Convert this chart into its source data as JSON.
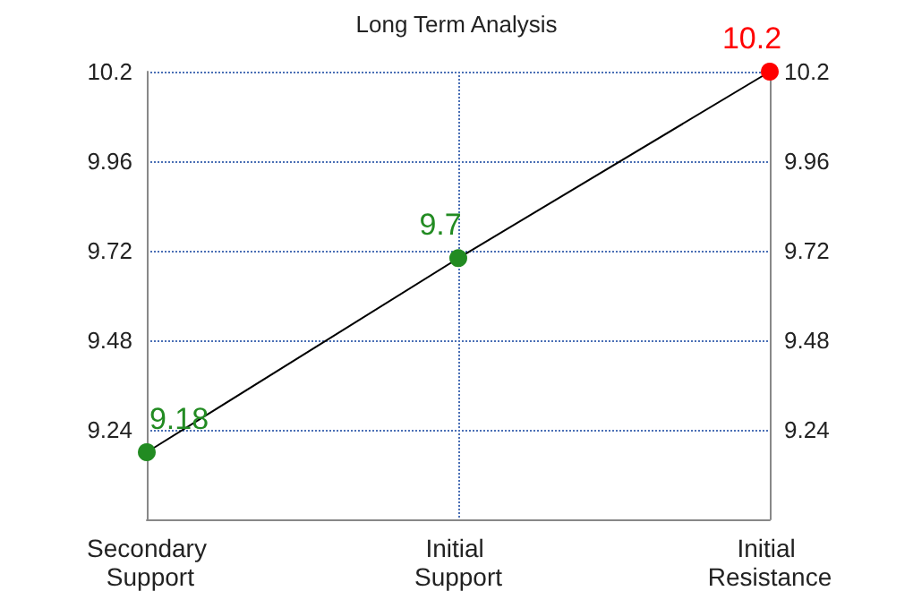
{
  "chart_data": {
    "type": "line",
    "title": "Long Term Analysis",
    "categories": [
      "Secondary Support",
      "Initial Support",
      "Initial Resistance"
    ],
    "series": [
      {
        "color": "#000000",
        "colors": [
          "#228b22",
          "#228b22",
          "#ff0000"
        ],
        "values": [
          9.18,
          9.7,
          10.2
        ]
      }
    ],
    "ylim": [
      9.0,
      10.2
    ],
    "yticks": [
      9.24,
      9.48,
      9.72,
      9.96,
      10.2
    ],
    "y2lim": [
      9.0,
      10.2
    ],
    "y2ticks": [
      9.24,
      9.48,
      9.72,
      9.96,
      10.2
    ],
    "grid": true,
    "marker": "circle",
    "data_labels": true
  }
}
